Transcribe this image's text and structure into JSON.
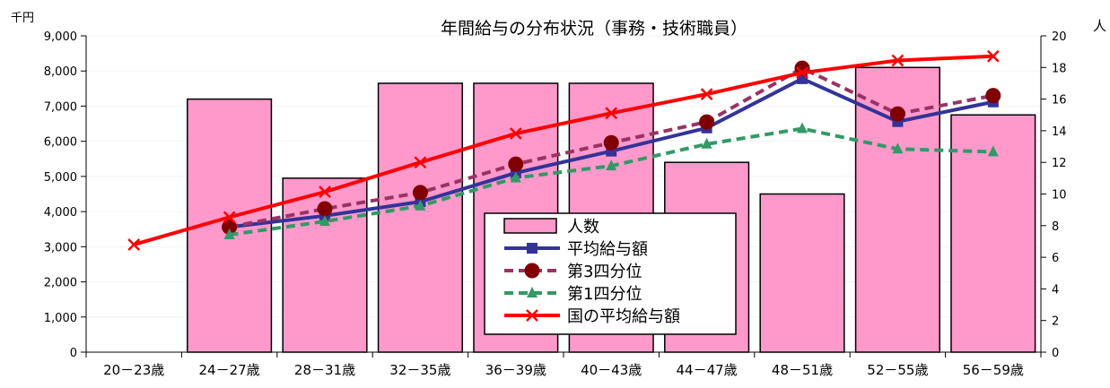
{
  "chart_data": {
    "type": "bar",
    "title": "年間給与の分布状況（事務・技術職員）",
    "y_left_unit": "千円",
    "y_right_unit": "人",
    "categories": [
      "20－23歳",
      "24－27歳",
      "28－31歳",
      "32－35歳",
      "36－39歳",
      "40－43歳",
      "44－47歳",
      "48－51歳",
      "52－55歳",
      "56－59歳"
    ],
    "y_left_ticks": [
      "0",
      "1,000",
      "2,000",
      "3,000",
      "4,000",
      "5,000",
      "6,000",
      "7,000",
      "8,000",
      "9,000"
    ],
    "y_right_ticks": [
      "0",
      "2",
      "4",
      "6",
      "8",
      "10",
      "12",
      "14",
      "16",
      "18",
      "20"
    ],
    "ylim_left": [
      0,
      9000
    ],
    "ylim_right": [
      0,
      20
    ],
    "bars": {
      "name": "人数",
      "axis": "right",
      "color": "#ff99cc",
      "values": [
        0,
        16,
        11,
        17,
        17,
        17,
        12,
        10,
        18,
        15
      ]
    },
    "series": [
      {
        "name": "平均給与額",
        "axis": "left",
        "color": "#333399",
        "marker": "square",
        "dash": false,
        "values": [
          null,
          3560,
          3880,
          4280,
          5100,
          5720,
          6380,
          7780,
          6560,
          7120
        ]
      },
      {
        "name": "第3四分位",
        "axis": "left",
        "color": "#993366",
        "marker": "circle",
        "dash": true,
        "values": [
          null,
          3560,
          4080,
          4540,
          5350,
          5960,
          6550,
          8080,
          6780,
          7300
        ]
      },
      {
        "name": "第1四分位",
        "axis": "left",
        "color": "#339966",
        "marker": "triangle",
        "dash": true,
        "values": [
          null,
          3340,
          3720,
          4160,
          4960,
          5300,
          5920,
          6360,
          5780,
          5700
        ]
      },
      {
        "name": "国の平均給与額",
        "axis": "left",
        "color": "#ff0000",
        "marker": "x",
        "dash": false,
        "values": [
          3060,
          3840,
          4560,
          5400,
          6220,
          6800,
          7340,
          7950,
          8300,
          8420
        ]
      }
    ],
    "legend": "center-right"
  }
}
